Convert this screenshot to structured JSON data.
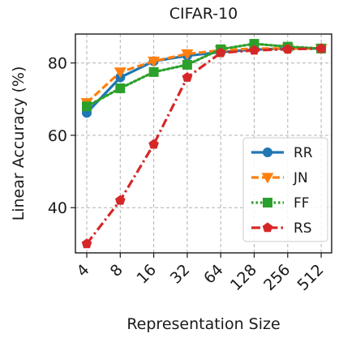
{
  "chart_data": {
    "type": "line",
    "title": "CIFAR-10",
    "xlabel": "Representation Size",
    "ylabel": "Linear Accuracy (%)",
    "categories": [
      "4",
      "8",
      "16",
      "32",
      "64",
      "128",
      "256",
      "512"
    ],
    "ylim": [
      27.5,
      88
    ],
    "yticks": [
      40,
      60,
      80
    ],
    "grid": true,
    "legend_position": "right-center",
    "series": [
      {
        "name": "RR",
        "color": "#1f77b4",
        "line": "solid",
        "marker": "circle",
        "values": [
          66.2,
          76.0,
          80.5,
          82.0,
          83.0,
          83.7,
          84.0,
          84.0
        ]
      },
      {
        "name": "JN",
        "color": "#ff7f0e",
        "line": "dashed",
        "marker": "triangle-down",
        "values": [
          69.0,
          77.5,
          80.5,
          82.5,
          83.5,
          84.0,
          84.0,
          84.0
        ]
      },
      {
        "name": "FF",
        "color": "#2ca02c",
        "line": "dotted",
        "marker": "square",
        "values": [
          68.0,
          73.0,
          77.5,
          79.5,
          83.8,
          85.3,
          84.5,
          84.0
        ]
      },
      {
        "name": "RS",
        "color": "#d62728",
        "line": "dashdot",
        "marker": "pentagon",
        "values": [
          30.0,
          42.0,
          57.5,
          76.0,
          82.8,
          83.5,
          83.8,
          84.0
        ]
      }
    ]
  }
}
